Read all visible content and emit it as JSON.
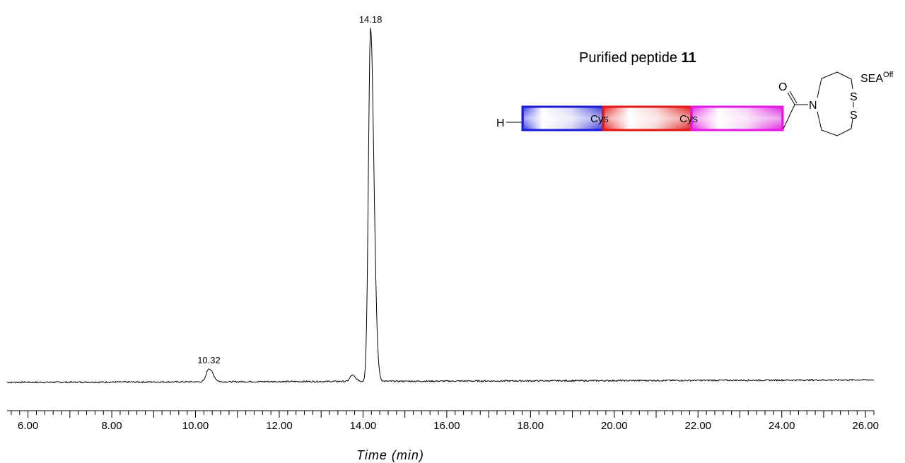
{
  "chart_data": {
    "type": "line",
    "title": "Purified peptide 11",
    "title_plain": "Purified peptide ",
    "title_bold": "11",
    "xlabel": "Time (min)",
    "ylabel": "",
    "xlim": [
      5.5,
      26.2
    ],
    "ylim": [
      0,
      1.0
    ],
    "x_ticks": [
      "6.00",
      "8.00",
      "10.00",
      "12.00",
      "14.00",
      "16.00",
      "18.00",
      "20.00",
      "22.00",
      "24.00",
      "26.00"
    ],
    "x_tick_values": [
      6,
      8,
      10,
      12,
      14,
      16,
      18,
      20,
      22,
      24,
      26
    ],
    "grid": false,
    "series": [
      {
        "color": "#000000",
        "baseline_start": 0.01,
        "baseline_end": 0.017,
        "peaks": [
          {
            "x": 10.32,
            "height": 0.037,
            "width": 0.06,
            "label": "10.32"
          },
          {
            "x": 13.74,
            "height": 0.017,
            "width": 0.05,
            "label": ""
          },
          {
            "x": 14.18,
            "height": 0.99,
            "width": 0.05,
            "label": "14.18"
          }
        ]
      }
    ]
  },
  "molecule": {
    "n_terminus": "H",
    "cys_1": "Cys",
    "cys_2": "Cys",
    "carbonyl_o": "O",
    "nitrogen": "N",
    "sulfur_1": "S",
    "sulfur_2": "S",
    "sea_label": "SEA",
    "sea_superscript": "Off",
    "segment_colors": [
      "#1a1adb",
      "#e81414",
      "#e815e8"
    ]
  }
}
